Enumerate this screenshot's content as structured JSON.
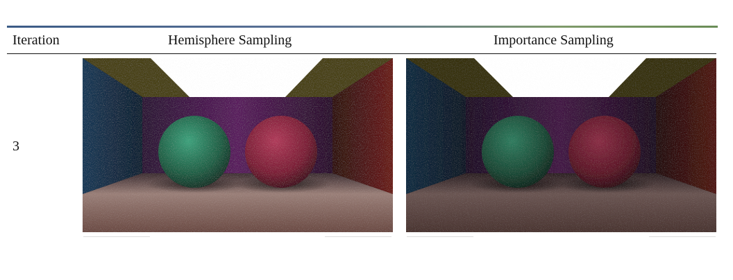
{
  "table": {
    "headers": {
      "iteration": "Iteration",
      "hemisphere": "Hemisphere Sampling",
      "importance": "Importance Sampling"
    },
    "rows": [
      {
        "iteration": "3"
      }
    ]
  },
  "colors": {
    "accent_rule_left": "#3b5b86",
    "accent_rule_right": "#6a8d57",
    "text": "#111111"
  }
}
